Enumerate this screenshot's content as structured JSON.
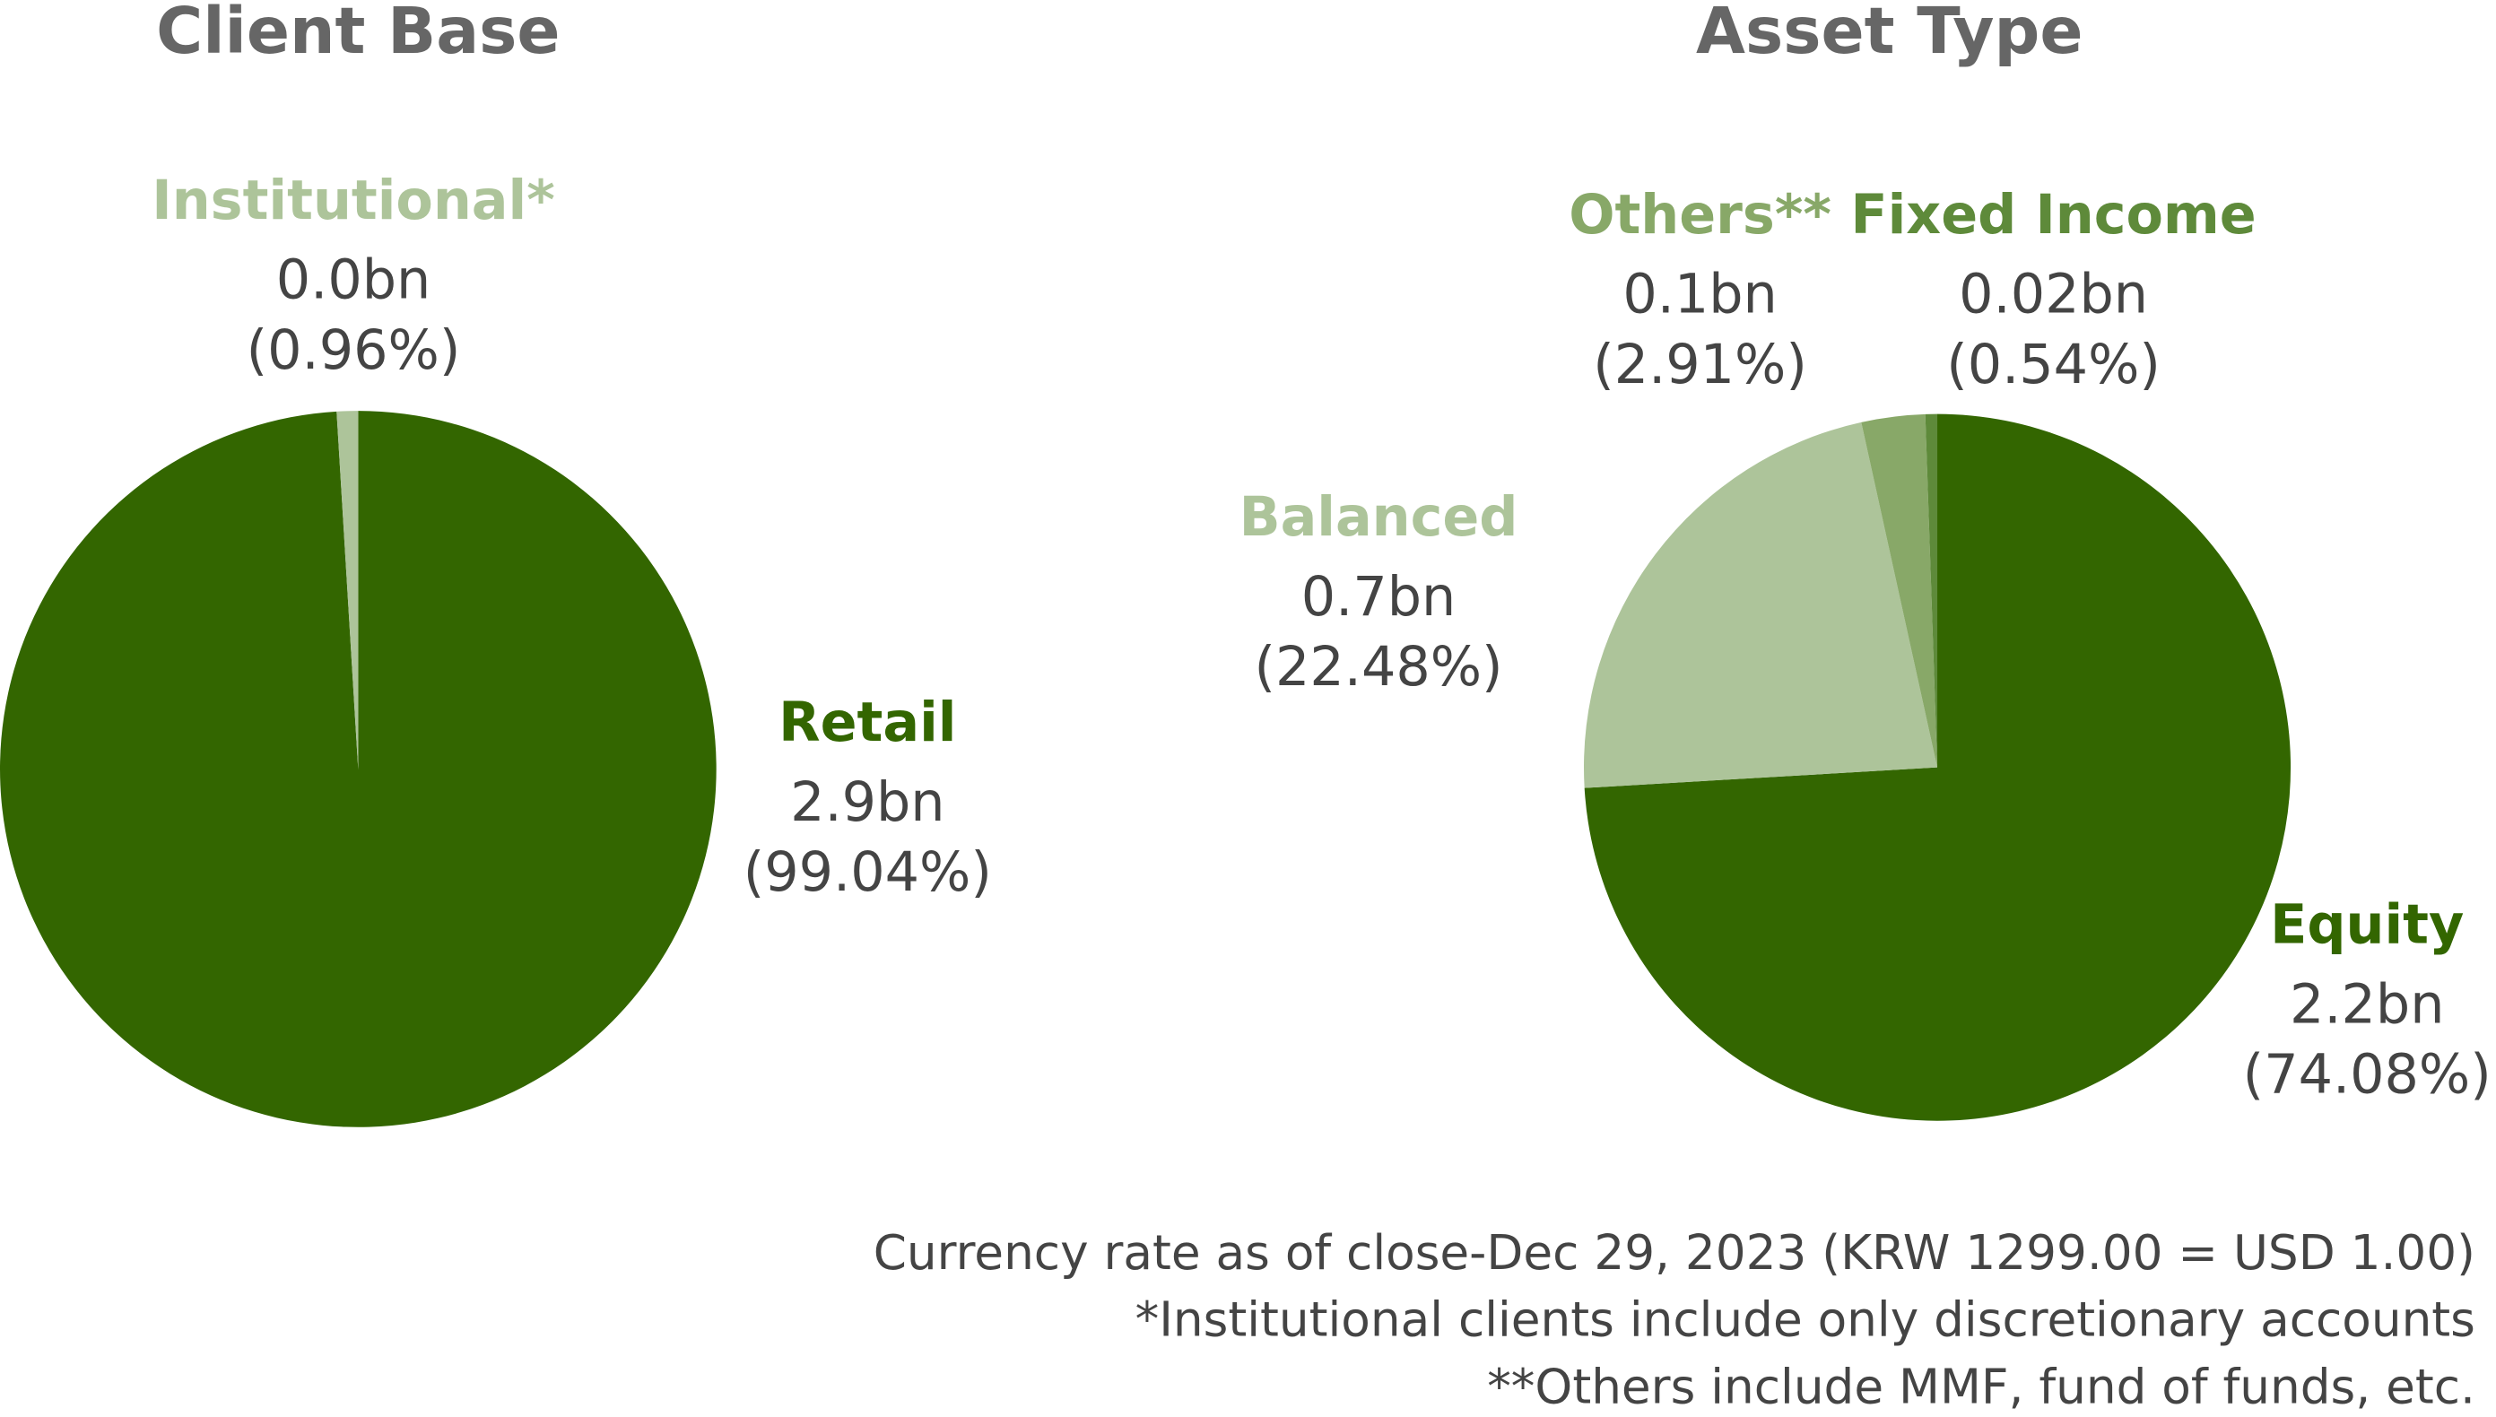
{
  "chart_data": [
    {
      "type": "pie",
      "title": "Client Base",
      "categories": [
        "Retail",
        "Institutional*"
      ],
      "amounts": [
        "2.9bn",
        "0.0bn"
      ],
      "values": [
        99.04,
        0.96
      ],
      "value_labels": [
        "(99.04%)",
        "(0.96%)"
      ],
      "colors": [
        "#336600",
        "#adc49a"
      ]
    },
    {
      "type": "pie",
      "title": "Asset Type",
      "categories": [
        "Equity",
        "Balanced",
        "Others**",
        "Fixed Income"
      ],
      "amounts": [
        "2.2bn",
        "0.7bn",
        "0.1bn",
        "0.02bn"
      ],
      "values": [
        74.08,
        22.48,
        2.91,
        0.54
      ],
      "value_labels": [
        "(74.08%)",
        "(22.48%)",
        "(2.91%)",
        "(0.54%)"
      ],
      "colors": [
        "#336600",
        "#adc49a",
        "#88a868",
        "#5e8a3a"
      ]
    }
  ],
  "notes": [
    "Currency rate as of close-Dec 29, 2023 (KRW 1299.00 = USD 1.00)",
    "*Institutional clients include only discretionary accounts",
    "**Others include MMF, fund of funds, etc."
  ]
}
